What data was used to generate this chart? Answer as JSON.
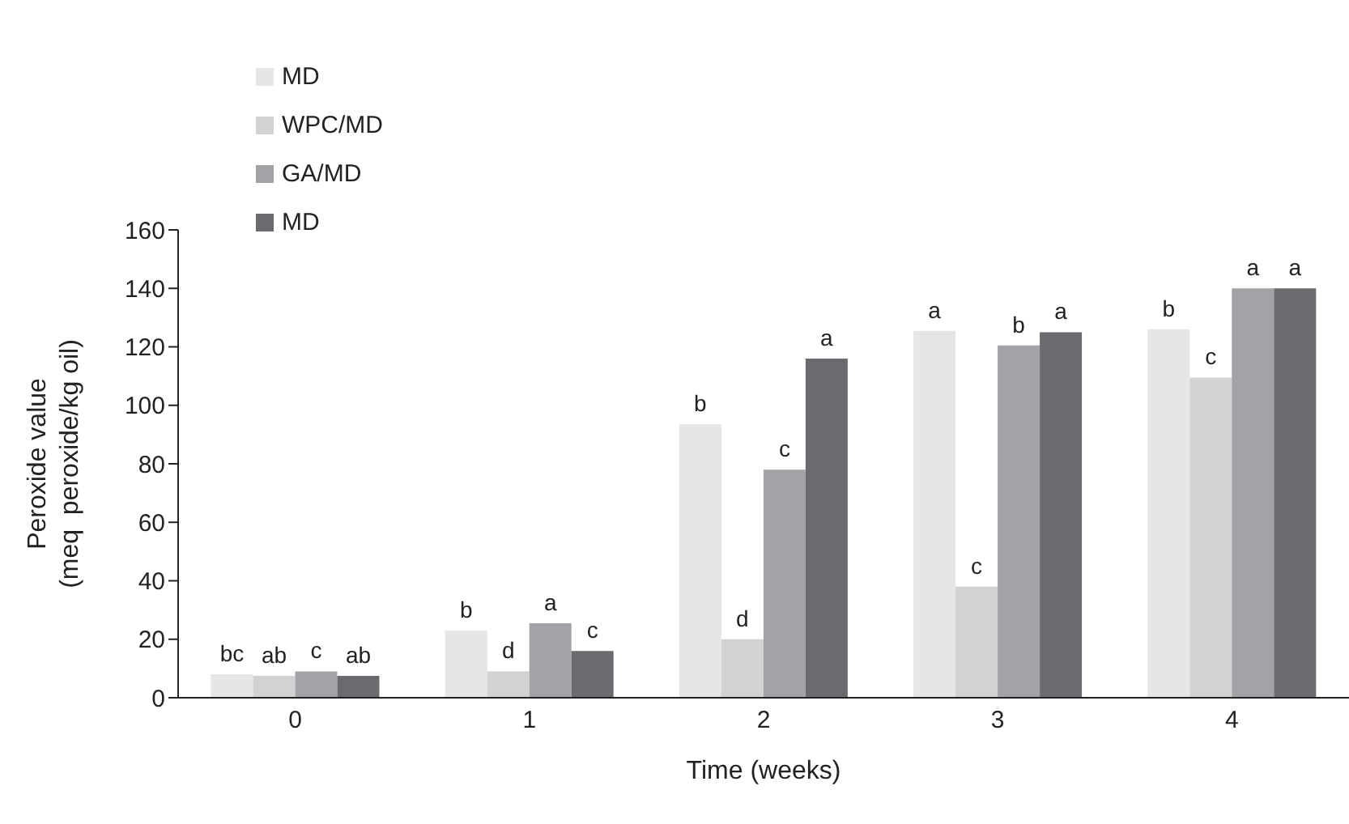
{
  "chart_data": {
    "type": "bar",
    "xlabel": "Time (weeks)",
    "ylabel": "Peroxide value\n(meq  peroxide/kg oil)",
    "categories": [
      "0",
      "1",
      "2",
      "3",
      "4"
    ],
    "ylim": [
      0,
      160
    ],
    "yticks": [
      0,
      20,
      40,
      60,
      80,
      100,
      120,
      140,
      160
    ],
    "grid": false,
    "legend": "top left",
    "series": [
      {
        "name": "MD",
        "color": "#e6e6e6",
        "values": [
          8,
          23,
          93.5,
          125.5,
          126
        ],
        "value_labels": [
          "bc",
          "b",
          "b",
          "a",
          "b"
        ]
      },
      {
        "name": "WPC/MD",
        "color": "#d2d2d4",
        "values": [
          7.5,
          9,
          20,
          38,
          109.5
        ],
        "value_labels": [
          "ab",
          "d",
          "d",
          "c",
          "c"
        ]
      },
      {
        "name": "GA/MD",
        "color": "#a2a3a7",
        "values": [
          9,
          25.5,
          78,
          120.5,
          140
        ],
        "value_labels": [
          "c",
          "a",
          "c",
          "b",
          "a"
        ]
      },
      {
        "name": "MD",
        "color": "#6a6b6f",
        "values": [
          7.5,
          16,
          116,
          125,
          140
        ],
        "value_labels": [
          "ab",
          "c",
          "a",
          "a",
          "a"
        ]
      }
    ]
  }
}
